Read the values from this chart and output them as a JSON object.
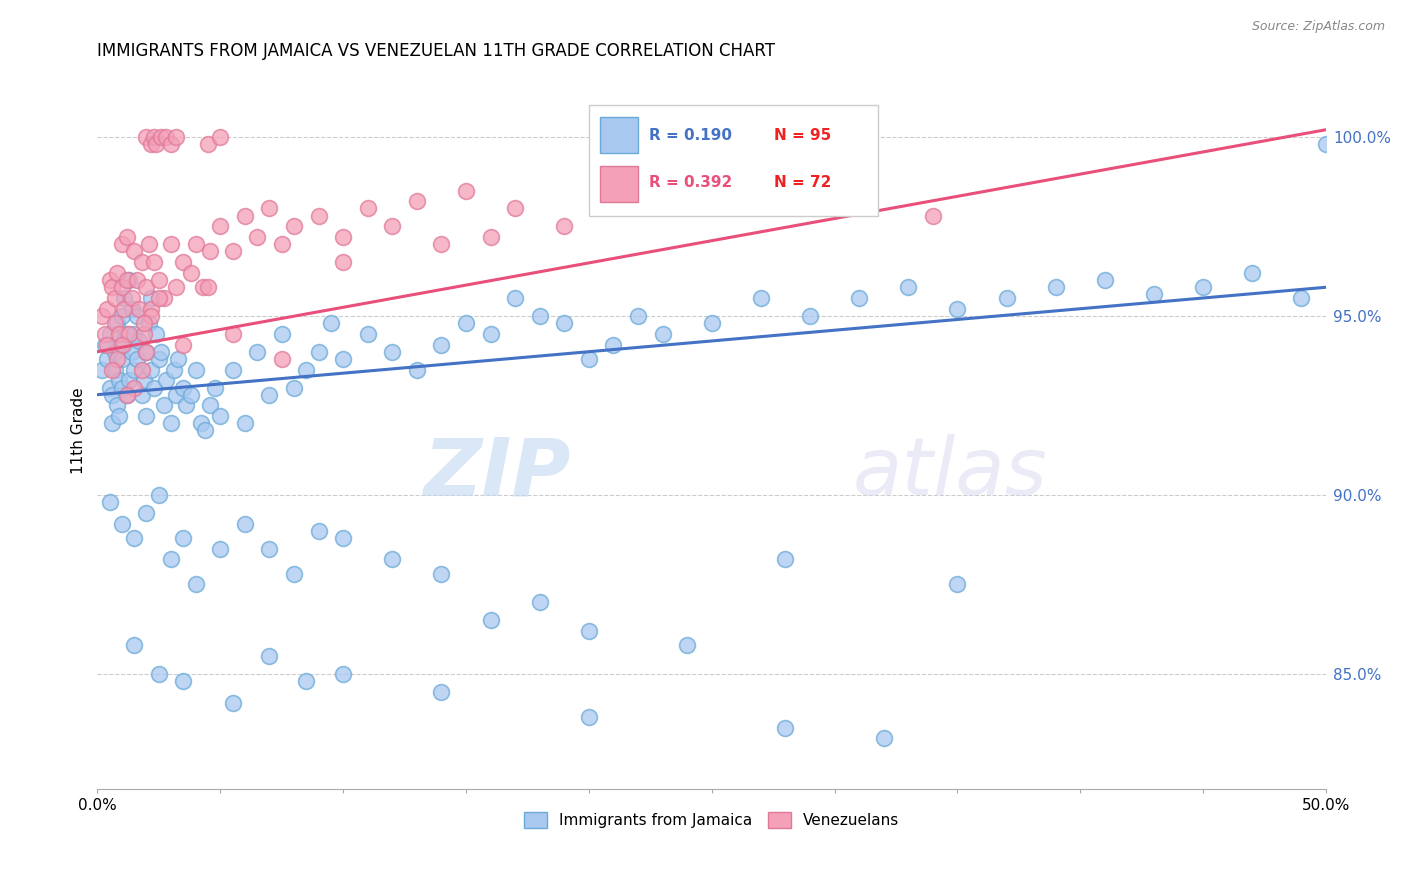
{
  "title": "IMMIGRANTS FROM JAMAICA VS VENEZUELAN 11TH GRADE CORRELATION CHART",
  "source": "Source: ZipAtlas.com",
  "ylabel": "11th Grade",
  "right_yticks": [
    "85.0%",
    "90.0%",
    "95.0%",
    "100.0%"
  ],
  "right_ytick_vals": [
    0.85,
    0.9,
    0.95,
    1.0
  ],
  "xlim": [
    0.0,
    0.5
  ],
  "ylim": [
    0.818,
    1.018
  ],
  "legend_blue_label": "Immigrants from Jamaica",
  "legend_pink_label": "Venezuelans",
  "legend_r_blue": "R = 0.190",
  "legend_n_blue": "N = 95",
  "legend_r_pink": "R = 0.392",
  "legend_n_pink": "N = 72",
  "blue_color": "#A8C8F0",
  "pink_color": "#F4A0B8",
  "blue_line_color": "#4472C4",
  "pink_line_color": "#E8507A",
  "watermark_zip": "ZIP",
  "watermark_atlas": "atlas",
  "blue_trend_x": [
    0.0,
    0.5
  ],
  "blue_trend_y": [
    0.928,
    0.958
  ],
  "pink_trend_x": [
    0.0,
    0.5
  ],
  "pink_trend_y": [
    0.94,
    1.002
  ],
  "blue_x": [
    0.002,
    0.003,
    0.004,
    0.005,
    0.005,
    0.006,
    0.006,
    0.007,
    0.007,
    0.008,
    0.008,
    0.009,
    0.009,
    0.01,
    0.01,
    0.01,
    0.011,
    0.011,
    0.012,
    0.012,
    0.013,
    0.013,
    0.014,
    0.014,
    0.015,
    0.015,
    0.016,
    0.016,
    0.017,
    0.018,
    0.019,
    0.02,
    0.02,
    0.021,
    0.022,
    0.022,
    0.023,
    0.024,
    0.025,
    0.026,
    0.027,
    0.028,
    0.03,
    0.031,
    0.032,
    0.033,
    0.035,
    0.036,
    0.038,
    0.04,
    0.042,
    0.044,
    0.046,
    0.048,
    0.05,
    0.055,
    0.06,
    0.065,
    0.07,
    0.075,
    0.08,
    0.085,
    0.09,
    0.095,
    0.1,
    0.11,
    0.12,
    0.13,
    0.14,
    0.15,
    0.16,
    0.17,
    0.18,
    0.19,
    0.2,
    0.21,
    0.22,
    0.23,
    0.25,
    0.27,
    0.29,
    0.31,
    0.33,
    0.35,
    0.37,
    0.39,
    0.41,
    0.43,
    0.45,
    0.47,
    0.49,
    0.5,
    0.35,
    0.28,
    0.18
  ],
  "blue_y": [
    0.935,
    0.942,
    0.938,
    0.93,
    0.945,
    0.92,
    0.928,
    0.935,
    0.94,
    0.948,
    0.925,
    0.932,
    0.922,
    0.93,
    0.938,
    0.95,
    0.942,
    0.955,
    0.928,
    0.945,
    0.932,
    0.96,
    0.94,
    0.952,
    0.935,
    0.945,
    0.938,
    0.95,
    0.943,
    0.928,
    0.932,
    0.94,
    0.922,
    0.948,
    0.935,
    0.955,
    0.93,
    0.945,
    0.938,
    0.94,
    0.925,
    0.932,
    0.92,
    0.935,
    0.928,
    0.938,
    0.93,
    0.925,
    0.928,
    0.935,
    0.92,
    0.918,
    0.925,
    0.93,
    0.922,
    0.935,
    0.92,
    0.94,
    0.928,
    0.945,
    0.93,
    0.935,
    0.94,
    0.948,
    0.938,
    0.945,
    0.94,
    0.935,
    0.942,
    0.948,
    0.945,
    0.955,
    0.95,
    0.948,
    0.938,
    0.942,
    0.95,
    0.945,
    0.948,
    0.955,
    0.95,
    0.955,
    0.958,
    0.952,
    0.955,
    0.958,
    0.96,
    0.956,
    0.958,
    0.962,
    0.955,
    0.998,
    0.875,
    0.882,
    0.87
  ],
  "blue_low_x": [
    0.005,
    0.01,
    0.015,
    0.02,
    0.025,
    0.03,
    0.035,
    0.04,
    0.05,
    0.06,
    0.07,
    0.08,
    0.09,
    0.1,
    0.12,
    0.14,
    0.16,
    0.2,
    0.24
  ],
  "blue_low_y": [
    0.898,
    0.892,
    0.888,
    0.895,
    0.9,
    0.882,
    0.888,
    0.875,
    0.885,
    0.892,
    0.885,
    0.878,
    0.89,
    0.888,
    0.882,
    0.878,
    0.865,
    0.862,
    0.858
  ],
  "blue_very_low_x": [
    0.015,
    0.025,
    0.035,
    0.055,
    0.07,
    0.085,
    0.1,
    0.14,
    0.2,
    0.28,
    0.32
  ],
  "blue_very_low_y": [
    0.858,
    0.85,
    0.848,
    0.842,
    0.855,
    0.848,
    0.85,
    0.845,
    0.838,
    0.835,
    0.832
  ],
  "pink_x": [
    0.002,
    0.003,
    0.004,
    0.005,
    0.006,
    0.007,
    0.007,
    0.008,
    0.009,
    0.01,
    0.01,
    0.011,
    0.012,
    0.012,
    0.013,
    0.014,
    0.015,
    0.016,
    0.017,
    0.018,
    0.019,
    0.02,
    0.021,
    0.022,
    0.023,
    0.025,
    0.027,
    0.03,
    0.032,
    0.035,
    0.038,
    0.04,
    0.043,
    0.046,
    0.05,
    0.055,
    0.06,
    0.065,
    0.07,
    0.075,
    0.08,
    0.09,
    0.1,
    0.11,
    0.12,
    0.13,
    0.15,
    0.17,
    0.19,
    0.21,
    0.24,
    0.27,
    0.3,
    0.34,
    0.02,
    0.018,
    0.015,
    0.012,
    0.01,
    0.008,
    0.006,
    0.004,
    0.1,
    0.14,
    0.16,
    0.075,
    0.055,
    0.045,
    0.035,
    0.025,
    0.022,
    0.019
  ],
  "pink_y": [
    0.95,
    0.945,
    0.952,
    0.96,
    0.958,
    0.948,
    0.955,
    0.962,
    0.945,
    0.958,
    0.97,
    0.952,
    0.96,
    0.972,
    0.945,
    0.955,
    0.968,
    0.96,
    0.952,
    0.965,
    0.945,
    0.958,
    0.97,
    0.952,
    0.965,
    0.96,
    0.955,
    0.97,
    0.958,
    0.965,
    0.962,
    0.97,
    0.958,
    0.968,
    0.975,
    0.968,
    0.978,
    0.972,
    0.98,
    0.97,
    0.975,
    0.978,
    0.972,
    0.98,
    0.975,
    0.982,
    0.985,
    0.98,
    0.975,
    0.982,
    0.985,
    0.988,
    0.982,
    0.978,
    0.94,
    0.935,
    0.93,
    0.928,
    0.942,
    0.938,
    0.935,
    0.942,
    0.965,
    0.97,
    0.972,
    0.938,
    0.945,
    0.958,
    0.942,
    0.955,
    0.95,
    0.948
  ],
  "pink_top_x": [
    0.02,
    0.022,
    0.023,
    0.024,
    0.026,
    0.028,
    0.03,
    0.032,
    0.045,
    0.05
  ],
  "pink_top_y": [
    1.0,
    0.998,
    1.0,
    0.998,
    1.0,
    1.0,
    0.998,
    1.0,
    0.998,
    1.0
  ]
}
